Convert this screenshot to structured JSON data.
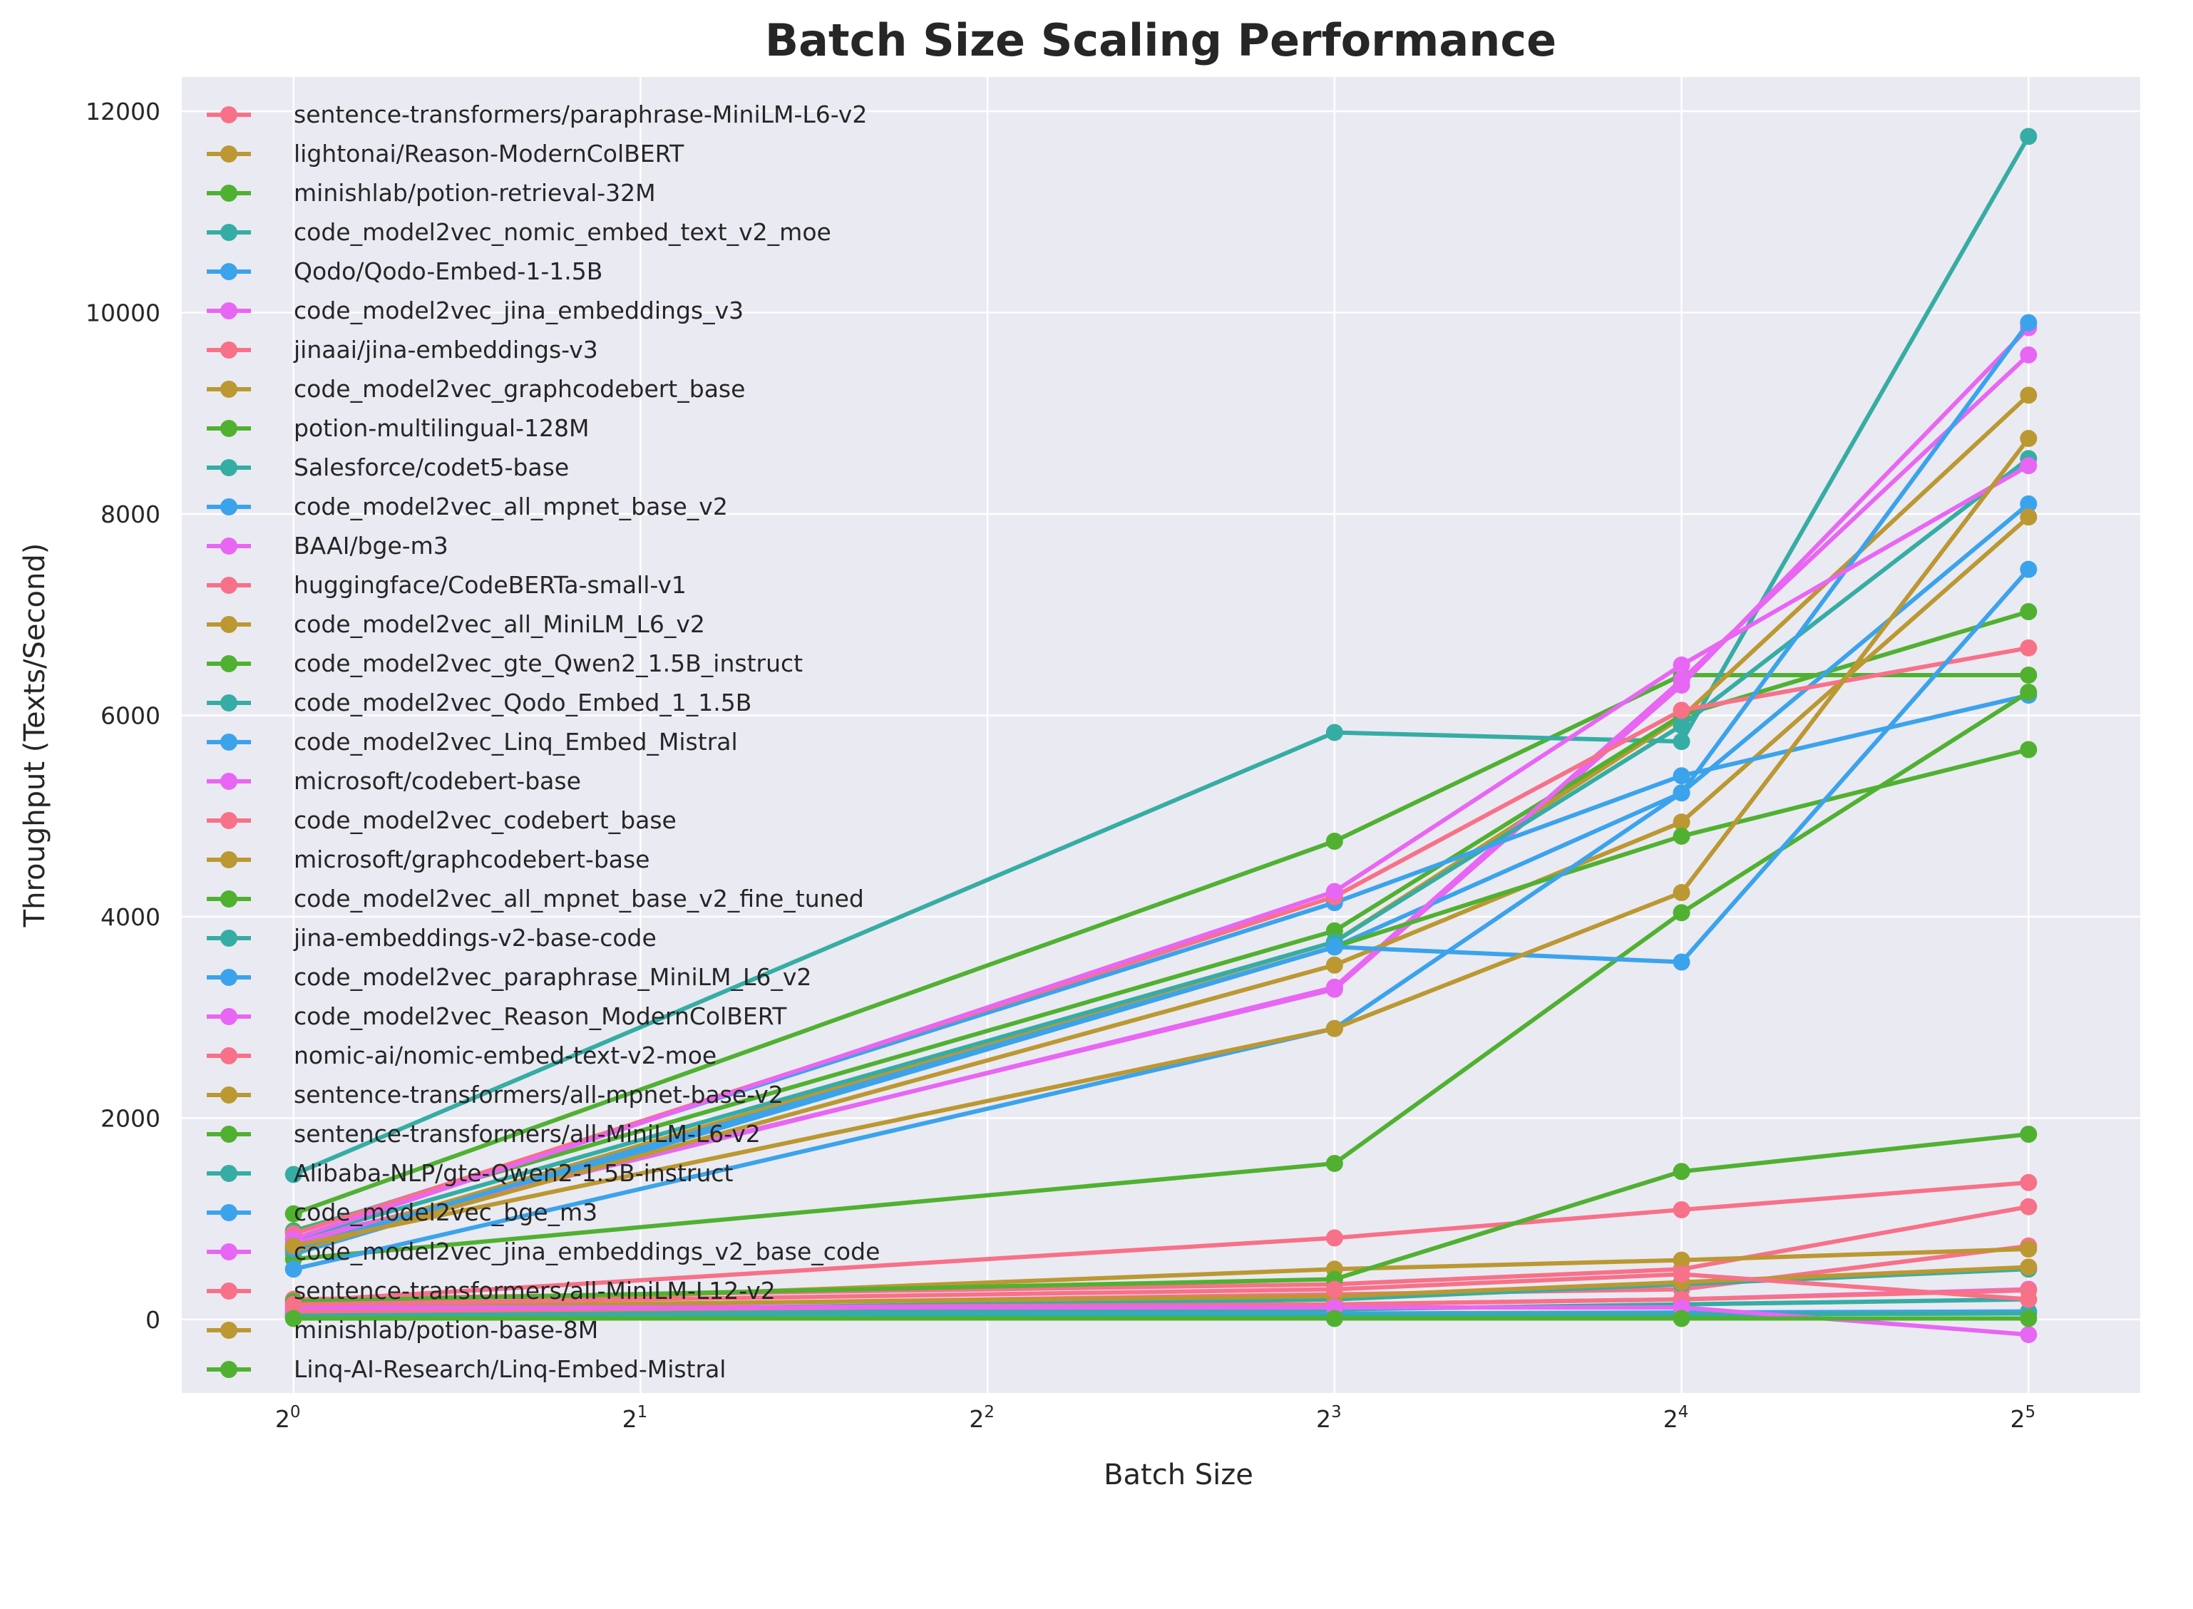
{
  "chart_data": {
    "type": "line",
    "title": "Batch Size Scaling Performance",
    "xlabel": "Batch Size",
    "ylabel": "Throughput (Texts/Second)",
    "xscale": "log2",
    "x": [
      1,
      8,
      16,
      32
    ],
    "xticks": [
      {
        "v": 1,
        "b": "2",
        "e": "0"
      },
      {
        "v": 2,
        "b": "2",
        "e": "1"
      },
      {
        "v": 4,
        "b": "2",
        "e": "2"
      },
      {
        "v": 8,
        "b": "2",
        "e": "3"
      },
      {
        "v": 16,
        "b": "2",
        "e": "4"
      },
      {
        "v": 32,
        "b": "2",
        "e": "5"
      }
    ],
    "yticks": [
      0,
      2000,
      4000,
      6000,
      8000,
      10000,
      12000
    ],
    "xlim": [
      0.8,
      40
    ],
    "ylim": [
      -730,
      12340
    ],
    "grid": true,
    "legend_placement": "upper-left",
    "palette": [
      "#f77189",
      "#bb9832",
      "#50b131",
      "#36ada4",
      "#3ba3ec",
      "#e866f4"
    ],
    "series": [
      {
        "name": "sentence-transformers/paraphrase-MiniLM-L6-v2",
        "values": [
          200,
          350,
          500,
          1120
        ]
      },
      {
        "name": "lightonai/Reason-ModernColBERT",
        "values": [
          20,
          200,
          350,
          520
        ]
      },
      {
        "name": "minishlab/potion-retrieval-32M",
        "values": [
          1050,
          4750,
          6400,
          6400
        ]
      },
      {
        "name": "code_model2vec_nomic_embed_text_v2_moe",
        "values": [
          1440,
          5830,
          5740,
          11750
        ]
      },
      {
        "name": "Qodo/Qodo-Embed-1-1.5B",
        "values": [
          30,
          60,
          70,
          80
        ]
      },
      {
        "name": "code_model2vec_jina_embeddings_v3",
        "values": [
          780,
          3280,
          6300,
          9850
        ]
      },
      {
        "name": "jinaai/jina-embeddings-v3",
        "values": [
          100,
          250,
          300,
          730
        ]
      },
      {
        "name": "code_model2vec_graphcodebert_base",
        "values": [
          720,
          3750,
          5980,
          9180
        ]
      },
      {
        "name": "potion-multilingual-128M",
        "values": [
          880,
          3860,
          6000,
          7030
        ]
      },
      {
        "name": "Salesforce/codet5-base",
        "values": [
          60,
          200,
          350,
          500
        ]
      },
      {
        "name": "code_model2vec_all_mpnet_base_v2",
        "values": [
          650,
          3700,
          5230,
          8100
        ]
      },
      {
        "name": "BAAI/bge-m3",
        "values": [
          750,
          3300,
          6350,
          9580
        ]
      },
      {
        "name": "huggingface/CodeBERTa-small-v1",
        "values": [
          180,
          810,
          1090,
          1360
        ]
      },
      {
        "name": "code_model2vec_all_MiniLM_L6_v2",
        "values": [
          680,
          3520,
          4940,
          7970
        ]
      },
      {
        "name": "code_model2vec_gte_Qwen2_1.5B_instruct",
        "values": [
          700,
          3700,
          4800,
          5660
        ]
      },
      {
        "name": "code_model2vec_Qodo_Embed_1_1.5B",
        "values": [
          800,
          3750,
          5900,
          8550
        ]
      },
      {
        "name": "code_model2vec_Linq_Embed_Mistral",
        "values": [
          860,
          4140,
          5400,
          6200
        ]
      },
      {
        "name": "microsoft/codebert-base",
        "values": [
          100,
          150,
          200,
          300
        ]
      },
      {
        "name": "code_model2vec_codebert_base",
        "values": [
          850,
          4200,
          6050,
          6670
        ]
      },
      {
        "name": "microsoft/graphcodebert-base",
        "values": [
          100,
          500,
          590,
          700
        ]
      },
      {
        "name": "code_model2vec_all_mpnet_base_v2_fine_tuned",
        "values": [
          600,
          1550,
          4040,
          6230
        ]
      },
      {
        "name": "jina-embeddings-v2-base-code",
        "values": [
          50,
          100,
          150,
          200
        ]
      },
      {
        "name": "code_model2vec_paraphrase_MiniLM_L6_v2",
        "values": [
          500,
          2890,
          5230,
          9900
        ]
      },
      {
        "name": "code_model2vec_Reason_ModernColBERT",
        "values": [
          800,
          4250,
          6500,
          8480
        ]
      },
      {
        "name": "nomic-ai/nomic-embed-text-v2-moe",
        "values": [
          80,
          150,
          200,
          290
        ]
      },
      {
        "name": "sentence-transformers/all-mpnet-base-v2",
        "values": [
          120,
          230,
          370,
          520
        ]
      },
      {
        "name": "sentence-transformers/all-MiniLM-L6-v2",
        "values": [
          180,
          400,
          1470,
          1840
        ]
      },
      {
        "name": "Alibaba-NLP/gte-Qwen2-1.5B-instruct",
        "values": [
          20,
          40,
          50,
          60
        ]
      },
      {
        "name": "code_model2vec_bge_m3",
        "values": [
          700,
          3700,
          3550,
          7450
        ]
      },
      {
        "name": "code_model2vec_jina_embeddings_v2_base_code",
        "values": [
          120,
          120,
          120,
          -150
        ]
      },
      {
        "name": "sentence-transformers/all-MiniLM-L12-v2",
        "values": [
          150,
          300,
          450,
          200
        ]
      },
      {
        "name": "minishlab/potion-base-8M",
        "values": [
          730,
          2890,
          4240,
          8750
        ]
      },
      {
        "name": "Linq-AI-Research/Linq-Embed-Mistral",
        "values": [
          10,
          10,
          10,
          10
        ]
      }
    ]
  }
}
